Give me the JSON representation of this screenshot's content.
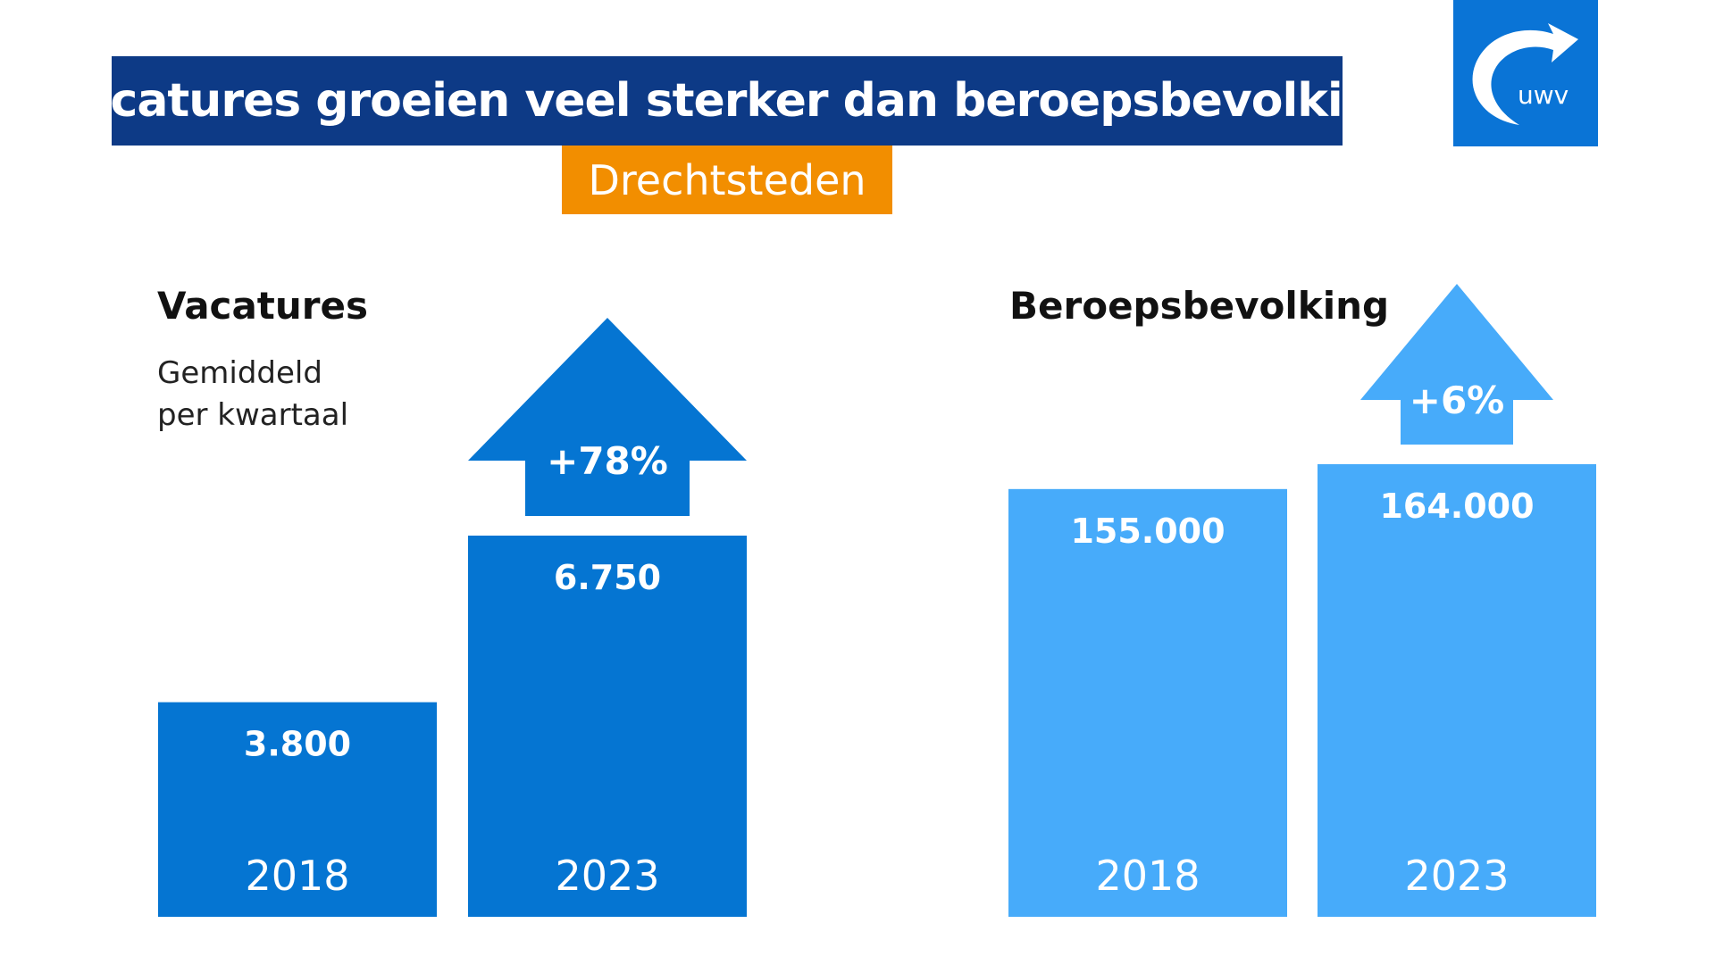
{
  "header": {
    "title": "Vacatures groeien veel sterker dan beroepsbevolking",
    "region": "Drechtsteden"
  },
  "logo": {
    "text": "uwv",
    "color": "#0a74d6"
  },
  "colors": {
    "title_background": "#0d3a86",
    "region_background": "#f28e00",
    "vacatures": "#0575d2",
    "beroepsbevolking": "#47abfa"
  },
  "chart_data": [
    {
      "type": "bar",
      "title": "Vacatures",
      "subtitle": "Gemiddeld\nper kwartaal",
      "categories": [
        "2018",
        "2023"
      ],
      "values": [
        3800,
        6750
      ],
      "value_labels": [
        "3.800",
        "6.750"
      ],
      "change_label": "+78%",
      "color": "#0575d2"
    },
    {
      "type": "bar",
      "title": "Beroepsbevolking",
      "categories": [
        "2018",
        "2023"
      ],
      "values": [
        155000,
        164000
      ],
      "value_labels": [
        "155.000",
        "164.000"
      ],
      "change_label": "+6%",
      "color": "#47abfa"
    }
  ]
}
